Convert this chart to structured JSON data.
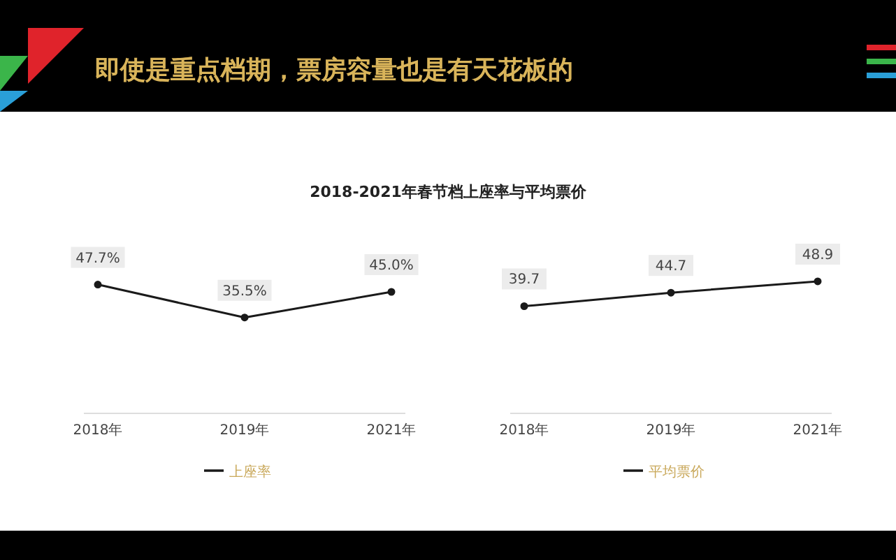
{
  "chart_data": [
    {
      "type": "line",
      "title": "即使是重点档期，票房容量也是有天花板的",
      "subtitle": "2018-2021年春节档上座率与平均票价",
      "categories": [
        "2018年",
        "2019年",
        "2021年"
      ],
      "series": [
        {
          "name": "上座率",
          "color": "#1a1a1a",
          "values": [
            47.7,
            35.5,
            45.0
          ],
          "value_labels": [
            "47.7%",
            "35.5%",
            "45.0%"
          ]
        }
      ],
      "marker": "circle",
      "legend": "bottom",
      "tick_labels": "x"
    },
    {
      "type": "line",
      "categories": [
        "2018年",
        "2019年",
        "2021年"
      ],
      "series": [
        {
          "name": "平均票价",
          "color": "#1a1a1a",
          "values": [
            39.7,
            44.7,
            48.9
          ]
        }
      ],
      "data_labels": true,
      "marker": "circle",
      "legend": "bottom",
      "tick_labels": "x"
    }
  ]
}
